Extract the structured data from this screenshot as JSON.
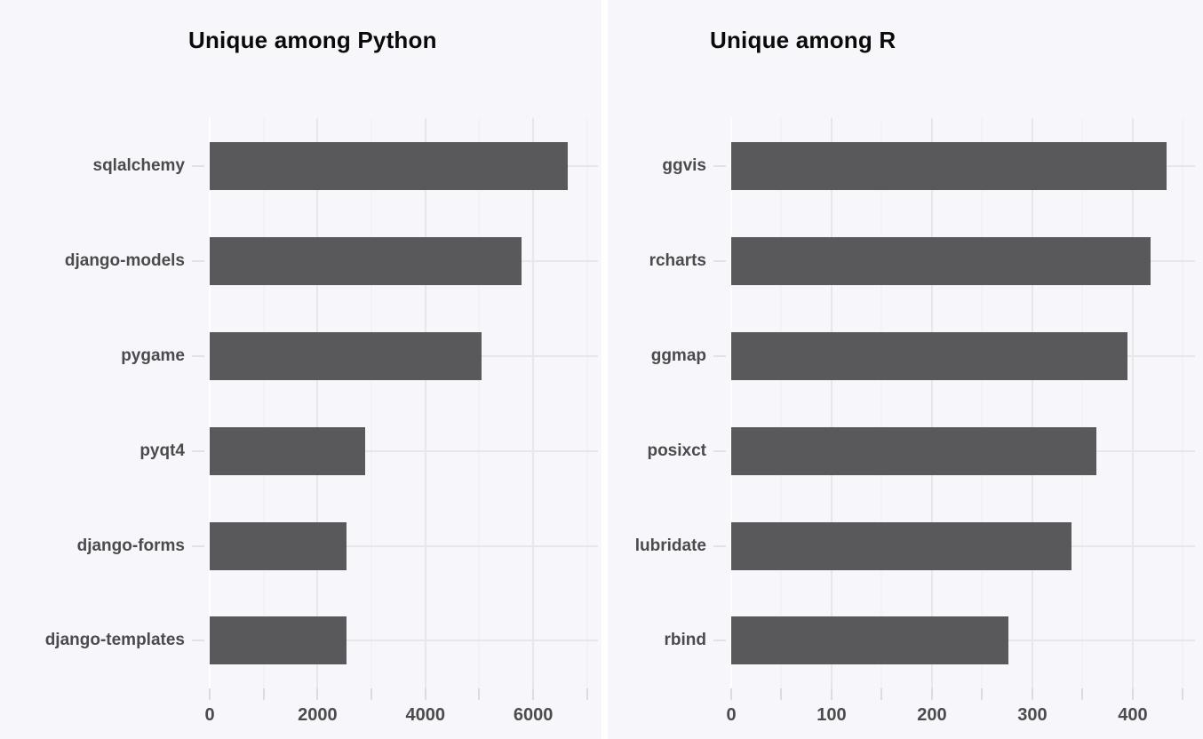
{
  "page": {
    "background": "#ffffff"
  },
  "style": {
    "panel_bg": "#f7f7fb",
    "bar_color": "#59595b",
    "grid_major_color": "#e7e7eb",
    "grid_minor_color": "#efeff3",
    "zero_line_color": "#ffffff",
    "axis_tick_color": "#dcdce0",
    "axis_label_color": "#4b4b4d",
    "title_color": "#0a0a0a"
  },
  "chart_data": [
    {
      "type": "bar",
      "orientation": "horizontal",
      "title": "Unique among Python",
      "categories": [
        "sqlalchemy",
        "django-models",
        "pygame",
        "pyqt4",
        "django-forms",
        "django-templates"
      ],
      "values": [
        6640,
        5790,
        5040,
        2890,
        2545,
        2530
      ],
      "xlabel": "",
      "ylabel": "",
      "x_tick_labels": [
        0,
        2000,
        4000,
        6000
      ],
      "x_minor_step": 1000,
      "xlim": [
        0,
        7200
      ],
      "grid": true,
      "legend": false
    },
    {
      "type": "bar",
      "orientation": "horizontal",
      "title": "Unique among R",
      "categories": [
        "ggvis",
        "rcharts",
        "ggmap",
        "posixct",
        "lubridate",
        "rbind"
      ],
      "values": [
        434,
        418,
        395,
        364,
        339,
        276
      ],
      "xlabel": "",
      "ylabel": "",
      "x_tick_labels": [
        0,
        100,
        200,
        300,
        400
      ],
      "x_minor_step": 50,
      "xlim": [
        0,
        462
      ],
      "grid": true,
      "legend": false
    }
  ]
}
